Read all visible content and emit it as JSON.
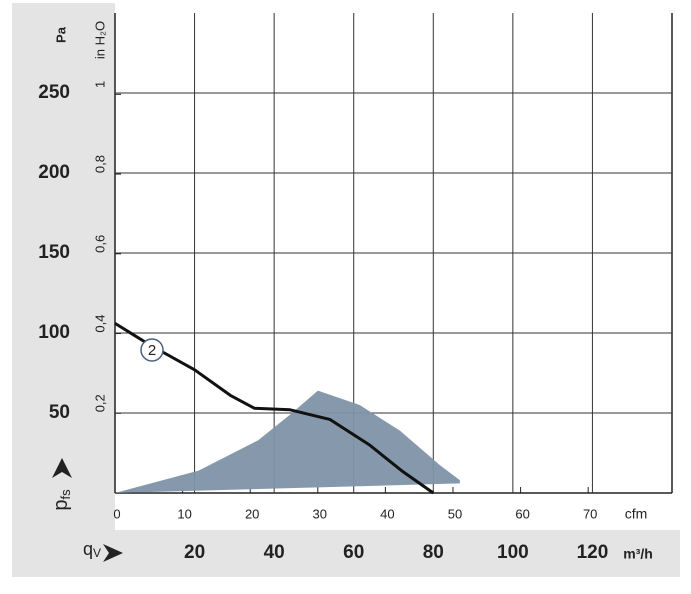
{
  "chart_data": {
    "type": "fan-curve",
    "y_unit": "Pa",
    "y2_unit": "in H₂O",
    "y_label": "p",
    "y_label_sub": "fs",
    "x_label": "q",
    "x_label_sub": "V",
    "x_unit": "m³/h",
    "x2_unit": "cfm",
    "xlim": [
      0,
      140
    ],
    "xticks": [
      20,
      40,
      60,
      80,
      100,
      120
    ],
    "x2lim": [
      0,
      82.4
    ],
    "x2ticks": [
      0,
      10,
      20,
      30,
      40,
      50,
      60,
      70
    ],
    "ylim": [
      0,
      300
    ],
    "yticks": [
      50,
      100,
      150,
      200,
      250
    ],
    "y2lim": [
      0,
      1.204
    ],
    "y2ticks": [
      {
        "value": 0.2,
        "label": "0,2"
      },
      {
        "value": 0.4,
        "label": "0,4"
      },
      {
        "value": 0.6,
        "label": "0,6"
      },
      {
        "value": 0.8,
        "label": "0,8"
      },
      1
    ],
    "grid": true,
    "curve": {
      "label": "2",
      "color": "#111111",
      "x": [
        0,
        8.8,
        20,
        29,
        35,
        44,
        54,
        64,
        72,
        80
      ],
      "y": [
        106,
        92.5,
        77,
        61,
        53,
        52,
        46,
        30,
        14,
        0
      ]
    },
    "operating_area": {
      "color": "#7f93a8",
      "x": [
        0,
        21,
        36,
        44,
        51,
        61.5,
        71.6,
        81.6,
        86.7,
        86.7
      ],
      "y": [
        0,
        14,
        33,
        49,
        64,
        55,
        39,
        17.5,
        8,
        6
      ]
    }
  }
}
